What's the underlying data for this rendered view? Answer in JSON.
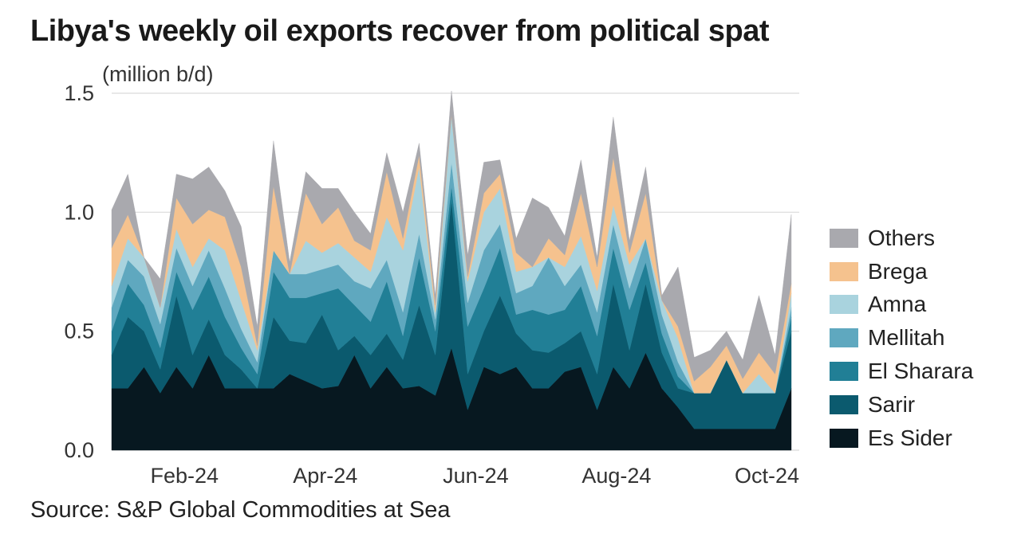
{
  "title": "Libya's weekly oil exports recover from political spat",
  "source": "Source: S&P Global Commodities at Sea",
  "chart_data": {
    "type": "area",
    "stacked": true,
    "title": "Libya's weekly oil exports recover from political spat",
    "ylabel": "(million b/d)",
    "xlabel": "",
    "ylim": [
      0,
      1.5
    ],
    "yticks": [
      "0.0",
      "0.5",
      "1.0",
      "1.5"
    ],
    "ytick_values": [
      0,
      0.5,
      1.0,
      1.5
    ],
    "grid": true,
    "legend_position": "right",
    "x_ticks": [
      {
        "label": "Feb-24",
        "week": 4.5
      },
      {
        "label": "Apr-24",
        "week": 13.2
      },
      {
        "label": "Jun-24",
        "week": 22.5
      },
      {
        "label": "Aug-24",
        "week": 31.2
      },
      {
        "label": "Oct-24",
        "week": 40.5
      }
    ],
    "series": [
      {
        "name": "Es Sider",
        "color": "#071820",
        "values": [
          0.26,
          0.26,
          0.35,
          0.24,
          0.35,
          0.26,
          0.4,
          0.26,
          0.26,
          0.26,
          0.26,
          0.32,
          0.29,
          0.26,
          0.27,
          0.4,
          0.26,
          0.35,
          0.26,
          0.27,
          0.23,
          0.43,
          0.17,
          0.35,
          0.32,
          0.35,
          0.26,
          0.26,
          0.33,
          0.35,
          0.17,
          0.35,
          0.26,
          0.41,
          0.26,
          0.18,
          0.09,
          0.09,
          0.09,
          0.09,
          0.09,
          0.09,
          0.26
        ]
      },
      {
        "name": "Sarir",
        "color": "#0b5a6e",
        "values": [
          0.14,
          0.3,
          0.15,
          0.1,
          0.3,
          0.14,
          0.15,
          0.14,
          0.08,
          0.0,
          0.3,
          0.14,
          0.16,
          0.31,
          0.15,
          0.08,
          0.14,
          0.14,
          0.12,
          0.34,
          0.17,
          0.62,
          0.15,
          0.15,
          0.33,
          0.14,
          0.16,
          0.15,
          0.12,
          0.15,
          0.15,
          0.35,
          0.16,
          0.29,
          0.15,
          0.08,
          0.15,
          0.15,
          0.29,
          0.15,
          0.15,
          0.15,
          0.24
        ]
      },
      {
        "name": "El Sharara",
        "color": "#217f96",
        "values": [
          0.1,
          0.14,
          0.11,
          0.09,
          0.1,
          0.19,
          0.18,
          0.16,
          0.09,
          0.06,
          0.19,
          0.18,
          0.19,
          0.09,
          0.26,
          0.13,
          0.14,
          0.22,
          0.1,
          0.2,
          0.1,
          0.06,
          0.2,
          0.18,
          0.2,
          0.08,
          0.17,
          0.16,
          0.14,
          0.19,
          0.16,
          0.15,
          0.17,
          0.09,
          0.08,
          0.05,
          0.0,
          0.0,
          0.0,
          0.0,
          0.0,
          0.0,
          0.06
        ]
      },
      {
        "name": "Mellitah",
        "color": "#5fa8bf",
        "values": [
          0.1,
          0.1,
          0.12,
          0.1,
          0.1,
          0.1,
          0.11,
          0.12,
          0.08,
          0.05,
          0.09,
          0.1,
          0.1,
          0.1,
          0.1,
          0.1,
          0.14,
          0.09,
          0.1,
          0.1,
          0.05,
          0.1,
          0.1,
          0.16,
          0.1,
          0.09,
          0.1,
          0.24,
          0.1,
          0.09,
          0.1,
          0.1,
          0.09,
          0.1,
          0.08,
          0.06,
          0.0,
          0.0,
          0.0,
          0.0,
          0.0,
          0.0,
          0.04
        ]
      },
      {
        "name": "Amna",
        "color": "#a9d3de",
        "values": [
          0.09,
          0.09,
          0.08,
          0.07,
          0.08,
          0.08,
          0.05,
          0.16,
          0.12,
          0.05,
          0.0,
          0.0,
          0.14,
          0.07,
          0.09,
          0.1,
          0.07,
          0.18,
          0.26,
          0.28,
          0.03,
          0.2,
          0.09,
          0.16,
          0.15,
          0.09,
          0.08,
          0.0,
          0.08,
          0.12,
          0.09,
          0.08,
          0.1,
          0.0,
          0.06,
          0.1,
          0.0,
          0.0,
          0.0,
          0.0,
          0.08,
          0.0,
          0.06
        ]
      },
      {
        "name": "Brega",
        "color": "#f5c28e",
        "values": [
          0.16,
          0.1,
          0.0,
          0.0,
          0.13,
          0.18,
          0.12,
          0.14,
          0.14,
          0.02,
          0.27,
          0.0,
          0.2,
          0.12,
          0.15,
          0.07,
          0.09,
          0.19,
          0.05,
          0.05,
          0.03,
          0.0,
          0.02,
          0.08,
          0.06,
          0.08,
          0.0,
          0.08,
          0.05,
          0.18,
          0.1,
          0.2,
          0.05,
          0.19,
          0.0,
          0.05,
          0.05,
          0.11,
          0.06,
          0.06,
          0.09,
          0.08,
          0.04
        ]
      },
      {
        "name": "Others",
        "color": "#a9a9ae",
        "values": [
          0.16,
          0.17,
          0.0,
          0.12,
          0.1,
          0.19,
          0.18,
          0.11,
          0.17,
          0.08,
          0.19,
          0.05,
          0.09,
          0.15,
          0.08,
          0.12,
          0.07,
          0.08,
          0.11,
          0.05,
          0.04,
          0.1,
          0.09,
          0.13,
          0.06,
          0.06,
          0.29,
          0.13,
          0.08,
          0.14,
          0.04,
          0.17,
          0.05,
          0.11,
          0.02,
          0.25,
          0.1,
          0.07,
          0.06,
          0.08,
          0.24,
          0.08,
          0.29
        ]
      }
    ]
  }
}
